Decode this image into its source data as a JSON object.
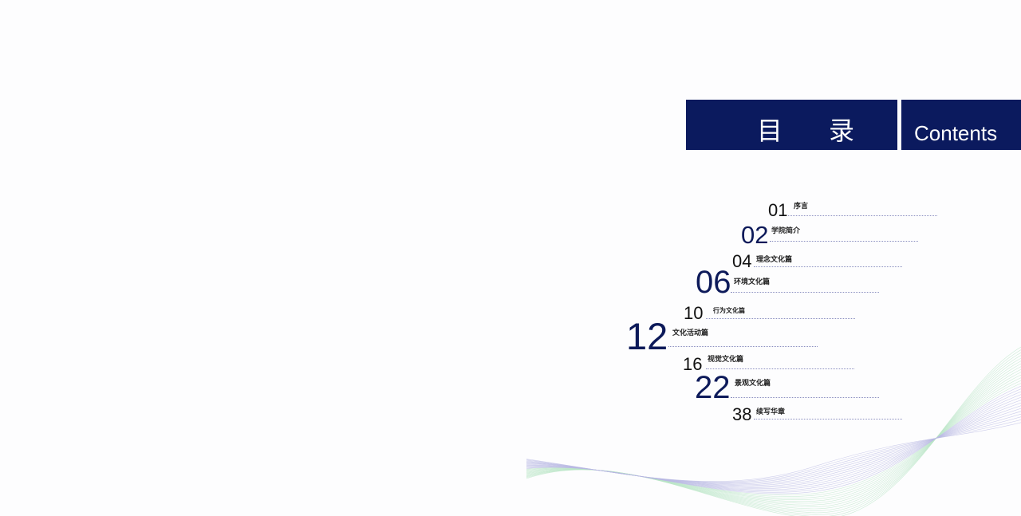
{
  "header": {
    "title_cn": "目 录",
    "title_en": "Contents",
    "color": "#0b1a5e"
  },
  "toc": [
    {
      "page": "01",
      "title": "序言"
    },
    {
      "page": "02",
      "title": "学院简介"
    },
    {
      "page": "04",
      "title": "理念文化篇"
    },
    {
      "page": "06",
      "title": "环境文化篇"
    },
    {
      "page": "10",
      "title": "行为文化篇"
    },
    {
      "page": "12",
      "title": "文化活动篇"
    },
    {
      "page": "16",
      "title": "视觉文化篇"
    },
    {
      "page": "22",
      "title": "景观文化篇"
    },
    {
      "page": "38",
      "title": "续写华章"
    }
  ],
  "colors": {
    "accent_number": "#0d1a5a",
    "leader_line": "#8b8fc0"
  }
}
